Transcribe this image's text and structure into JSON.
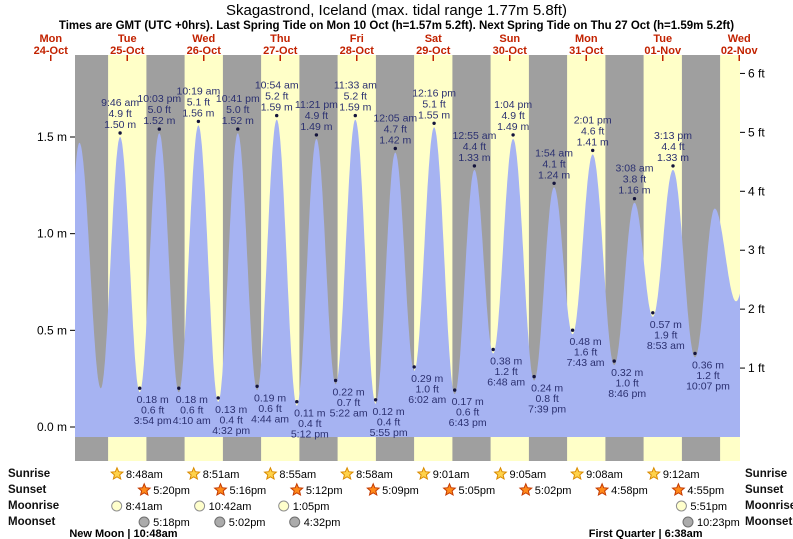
{
  "title": "Skagastrond, Iceland (max. tidal range 1.77m 5.8ft)",
  "subtitle": "Times are GMT (UTC +0hrs). Last Spring Tide on Mon 10 Oct (h=1.57m 5.2ft). Next Spring Tide on Thu 27 Oct (h=1.59m 5.2ft)",
  "days": [
    {
      "weekday": "Mon",
      "date": "24-Oct"
    },
    {
      "weekday": "Tue",
      "date": "25-Oct"
    },
    {
      "weekday": "Wed",
      "date": "26-Oct"
    },
    {
      "weekday": "Thu",
      "date": "27-Oct"
    },
    {
      "weekday": "Fri",
      "date": "28-Oct"
    },
    {
      "weekday": "Sat",
      "date": "29-Oct"
    },
    {
      "weekday": "Sun",
      "date": "30-Oct"
    },
    {
      "weekday": "Mon",
      "date": "31-Oct"
    },
    {
      "weekday": "Tue",
      "date": "01-Nov"
    },
    {
      "weekday": "Wed",
      "date": "02-Nov"
    }
  ],
  "colors": {
    "night_stripe": "#9f9f9f",
    "daylight_stripe": "#ffffc8",
    "tide_fill": "#a6b3f2",
    "day_label": "#c22200",
    "annotation": "#2b3070",
    "marker": "#14143c",
    "sunrise_star": "#ffd24a",
    "sunset_star": "#ff8a1a",
    "moonrise_moon": "#ffffcc",
    "moonset_moon": "#ababab"
  },
  "chart_data": {
    "type": "area",
    "title": "Skagastrond, Iceland tide curve, Mon 24-Oct to Wed 02-Nov",
    "ylim_m": [
      -0.05,
      1.92
    ],
    "y_axis_left": [
      {
        "label": "0.0 m",
        "v": 0.0
      },
      {
        "label": "0.5 m",
        "v": 0.5
      },
      {
        "label": "1.0 m",
        "v": 1.0
      },
      {
        "label": "1.5 m",
        "v": 1.5
      }
    ],
    "y_axis_right": [
      {
        "label": "1 ft",
        "v_ft": 1
      },
      {
        "label": "2 ft",
        "v_ft": 2
      },
      {
        "label": "3 ft",
        "v_ft": 3
      },
      {
        "label": "4 ft",
        "v_ft": 4
      },
      {
        "label": "5 ft",
        "v_ft": 5
      },
      {
        "label": "6 ft",
        "v_ft": 6
      }
    ],
    "high_tides": [
      {
        "day": 1,
        "time": "9:46 am",
        "ft": "4.9 ft",
        "m": "1.50 m",
        "height_m": 1.5
      },
      {
        "day": 1,
        "time": "10:03 pm",
        "ft": "5.0 ft",
        "m": "1.52 m",
        "height_m": 1.52
      },
      {
        "day": 2,
        "time": "10:19 am",
        "ft": "5.1 ft",
        "m": "1.56 m",
        "height_m": 1.56
      },
      {
        "day": 2,
        "time": "10:41 pm",
        "ft": "5.0 ft",
        "m": "1.52 m",
        "height_m": 1.52
      },
      {
        "day": 3,
        "time": "10:54 am",
        "ft": "5.2 ft",
        "m": "1.59 m",
        "height_m": 1.59
      },
      {
        "day": 3,
        "time": "11:21 pm",
        "ft": "4.9 ft",
        "m": "1.49 m",
        "height_m": 1.49
      },
      {
        "day": 4,
        "time": "11:33 am",
        "ft": "5.2 ft",
        "m": "1.59 m",
        "height_m": 1.59
      },
      {
        "day": 5,
        "time": "12:05 am",
        "ft": "4.7 ft",
        "m": "1.42 m",
        "height_m": 1.42
      },
      {
        "day": 5,
        "time": "12:16 pm",
        "ft": "5.1 ft",
        "m": "1.55 m",
        "height_m": 1.55
      },
      {
        "day": 6,
        "time": "12:55 am",
        "ft": "4.4 ft",
        "m": "1.33 m",
        "height_m": 1.33
      },
      {
        "day": 6,
        "time": "1:04 pm",
        "ft": "4.9 ft",
        "m": "1.49 m",
        "height_m": 1.49
      },
      {
        "day": 7,
        "time": "1:54 am",
        "ft": "4.1 ft",
        "m": "1.24 m",
        "height_m": 1.24
      },
      {
        "day": 7,
        "time": "2:01 pm",
        "ft": "4.6 ft",
        "m": "1.41 m",
        "height_m": 1.41
      },
      {
        "day": 8,
        "time": "3:08 am",
        "ft": "3.8 ft",
        "m": "1.16 m",
        "height_m": 1.16
      },
      {
        "day": 8,
        "time": "3:13 pm",
        "ft": "4.4 ft",
        "m": "1.33 m",
        "height_m": 1.33
      }
    ],
    "low_tides": [
      {
        "day": 1,
        "time": "3:54 pm",
        "ft": "0.6 ft",
        "m": "0.18 m",
        "height_m": 0.18
      },
      {
        "day": 2,
        "time": "4:10 am",
        "ft": "0.6 ft",
        "m": "0.18 m",
        "height_m": 0.18
      },
      {
        "day": 2,
        "time": "4:32 pm",
        "ft": "0.4 ft",
        "m": "0.13 m",
        "height_m": 0.13
      },
      {
        "day": 3,
        "time": "4:44 am",
        "ft": "0.6 ft",
        "m": "0.19 m",
        "height_m": 0.19
      },
      {
        "day": 3,
        "time": "5:12 pm",
        "ft": "0.4 ft",
        "m": "0.11 m",
        "height_m": 0.11
      },
      {
        "day": 4,
        "time": "5:22 am",
        "ft": "0.7 ft",
        "m": "0.22 m",
        "height_m": 0.22
      },
      {
        "day": 4,
        "time": "5:55 pm",
        "ft": "0.4 ft",
        "m": "0.12 m",
        "height_m": 0.12
      },
      {
        "day": 5,
        "time": "6:02 am",
        "ft": "1.0 ft",
        "m": "0.29 m",
        "height_m": 0.29
      },
      {
        "day": 5,
        "time": "6:43 pm",
        "ft": "0.6 ft",
        "m": "0.17 m",
        "height_m": 0.17
      },
      {
        "day": 6,
        "time": "6:48 am",
        "ft": "1.2 ft",
        "m": "0.38 m",
        "height_m": 0.38
      },
      {
        "day": 6,
        "time": "7:39 pm",
        "ft": "0.8 ft",
        "m": "0.24 m",
        "height_m": 0.24
      },
      {
        "day": 7,
        "time": "7:43 am",
        "ft": "1.6 ft",
        "m": "0.48 m",
        "height_m": 0.48
      },
      {
        "day": 7,
        "time": "8:46 pm",
        "ft": "1.0 ft",
        "m": "0.32 m",
        "height_m": 0.32
      },
      {
        "day": 8,
        "time": "8:53 am",
        "ft": "1.9 ft",
        "m": "0.57 m",
        "height_m": 0.57
      },
      {
        "day": 8,
        "time": "10:07 pm",
        "ft": "1.2 ft",
        "m": "0.36 m",
        "height_m": 0.36
      }
    ],
    "curve_shape_extremes_unlabeled": [
      {
        "t": 15.1,
        "h": 0.2
      },
      {
        "t": 21.0,
        "h": 1.47
      },
      {
        "t": 27.7,
        "h": 0.2
      },
      {
        "t": 220.3,
        "h": 1.13
      },
      {
        "t": 227.0,
        "h": 0.65
      },
      {
        "t": 233.0,
        "h": 1.05
      }
    ]
  },
  "sun_moon": {
    "row_labels": [
      "Sunrise",
      "Sunset",
      "Moonrise",
      "Moonset"
    ],
    "sunrise": [
      {
        "day": 1,
        "time": "8:48am"
      },
      {
        "day": 2,
        "time": "8:51am"
      },
      {
        "day": 3,
        "time": "8:55am"
      },
      {
        "day": 4,
        "time": "8:58am"
      },
      {
        "day": 5,
        "time": "9:01am"
      },
      {
        "day": 6,
        "time": "9:05am"
      },
      {
        "day": 7,
        "time": "9:08am"
      },
      {
        "day": 8,
        "time": "9:12am"
      }
    ],
    "sunset": [
      {
        "day": 1,
        "time": "5:20pm"
      },
      {
        "day": 2,
        "time": "5:16pm"
      },
      {
        "day": 3,
        "time": "5:12pm"
      },
      {
        "day": 4,
        "time": "5:09pm"
      },
      {
        "day": 5,
        "time": "5:05pm"
      },
      {
        "day": 6,
        "time": "5:02pm"
      },
      {
        "day": 7,
        "time": "4:58pm"
      },
      {
        "day": 8,
        "time": "4:55pm"
      }
    ],
    "moonrise": [
      {
        "day": 1,
        "time": "8:41am"
      },
      {
        "day": 2,
        "time": "10:42am"
      },
      {
        "day": 3,
        "time": "1:05pm"
      },
      {
        "day": 8,
        "time": "5:51pm"
      }
    ],
    "moonset": [
      {
        "day": 1,
        "time": "5:18pm"
      },
      {
        "day": 2,
        "time": "5:02pm"
      },
      {
        "day": 3,
        "time": "4:32pm"
      },
      {
        "day": 8,
        "time": "10:23pm"
      }
    ]
  },
  "moon_phases": [
    {
      "label": "New Moon",
      "time": "10:48am",
      "day": 1
    },
    {
      "label": "First Quarter",
      "time": "6:38am",
      "day": 8
    }
  ]
}
